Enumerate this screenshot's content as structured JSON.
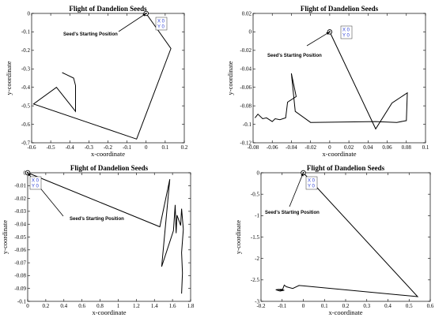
{
  "chart_data": [
    {
      "type": "line",
      "title": "Flight of Dandelion Seeds",
      "xlabel": "x-coordinate",
      "ylabel": "y-coordinate",
      "xlim": [
        -0.6,
        0.2
      ],
      "ylim": [
        -0.7,
        0
      ],
      "xticks": [
        -0.6,
        -0.5,
        -0.4,
        -0.3,
        -0.2,
        -0.1,
        0,
        0.1,
        0.2
      ],
      "xtick_labels": [
        "-0.6",
        "-0.5",
        "-0.4",
        "-0.3",
        "-0.2",
        "-0.1",
        "0",
        "0.1",
        "0.2"
      ],
      "yticks": [
        0,
        -0.1,
        -0.2,
        -0.3,
        -0.4,
        -0.5,
        -0.6,
        -0.7
      ],
      "ytick_labels": [
        "0",
        "-0.1",
        "-0.2",
        "-0.3",
        "-0.4",
        "-0.5",
        "-0.6",
        "-0.7"
      ],
      "annotation": "Seed's Starting Position",
      "datatip": {
        "x_label": "X",
        "x_value": "0",
        "y_label": "Y",
        "y_value": "0"
      },
      "grid": false,
      "series": [
        {
          "x": [
            0,
            0.13,
            -0.05,
            -0.59,
            -0.47,
            -0.37,
            -0.37,
            -0.38,
            -0.42,
            -0.44
          ],
          "y": [
            0,
            -0.19,
            -0.68,
            -0.49,
            -0.4,
            -0.53,
            -0.39,
            -0.35,
            -0.33,
            -0.32
          ]
        }
      ]
    },
    {
      "type": "line",
      "title": "Flight of Dandelion Seeds",
      "xlabel": "x-coordinate",
      "ylabel": "y-coordinate",
      "xlim": [
        -0.08,
        0.1
      ],
      "ylim": [
        -0.12,
        0.02
      ],
      "xticks": [
        -0.08,
        -0.06,
        -0.04,
        -0.02,
        0,
        0.02,
        0.04,
        0.06,
        0.08,
        0.1
      ],
      "xtick_labels": [
        "-0.08",
        "-0.06",
        "-0.04",
        "-0.02",
        "0",
        "0.02",
        "0.04",
        "0.06",
        "0.08",
        "0.1"
      ],
      "yticks": [
        0.02,
        0,
        -0.02,
        -0.04,
        -0.06,
        -0.08,
        -0.1,
        -0.12
      ],
      "ytick_labels": [
        "0.02",
        "0",
        "-0.02",
        "-0.04",
        "-0.06",
        "-0.08",
        "-0.1",
        "-0.12"
      ],
      "annotation": "Seed's Starting Position",
      "datatip": {
        "x_label": "X",
        "x_value": "0",
        "y_label": "Y",
        "y_value": "0"
      },
      "grid": false,
      "series": [
        {
          "x": [
            0,
            0.048,
            0.065,
            0.081,
            0.08,
            0.07,
            0.048,
            -0.02,
            -0.036,
            -0.04,
            -0.035,
            -0.044,
            -0.046,
            -0.052,
            -0.057,
            -0.06,
            -0.066,
            -0.07,
            -0.075,
            -0.078
          ],
          "y": [
            0,
            -0.105,
            -0.077,
            -0.066,
            -0.096,
            -0.098,
            -0.097,
            -0.098,
            -0.086,
            -0.045,
            -0.07,
            -0.076,
            -0.093,
            -0.095,
            -0.094,
            -0.097,
            -0.093,
            -0.094,
            -0.089,
            -0.093
          ]
        }
      ]
    },
    {
      "type": "line",
      "title": "Flight of Dandelion Seeds",
      "xlabel": "x-coordinate",
      "ylabel": "y-coordinate",
      "xlim": [
        0,
        1.8
      ],
      "ylim": [
        -0.1,
        0
      ],
      "xticks": [
        0,
        0.2,
        0.4,
        0.6,
        0.8,
        1,
        1.2,
        1.4,
        1.6,
        1.8
      ],
      "xtick_labels": [
        "0",
        "0.2",
        "0.4",
        "0.6",
        "0.8",
        "1",
        "1.2",
        "1.4",
        "1.6",
        "1.8"
      ],
      "yticks": [
        0,
        -0.01,
        -0.02,
        -0.03,
        -0.04,
        -0.05,
        -0.06,
        -0.07,
        -0.08,
        -0.09,
        -0.1
      ],
      "ytick_labels": [
        "0",
        "-0.01",
        "-0.02",
        "-0.03",
        "-0.04",
        "-0.05",
        "-0.06",
        "-0.07",
        "-0.08",
        "-0.09",
        "-0.1"
      ],
      "annotation": "Seed's Starting Position",
      "datatip": {
        "x_label": "X",
        "x_value": "0",
        "y_label": "Y",
        "y_value": "0"
      },
      "grid": false,
      "series": [
        {
          "x": [
            0,
            1.46,
            1.57,
            1.48,
            1.61,
            1.63,
            1.64,
            1.65,
            1.69,
            1.7,
            1.72,
            1.7,
            1.71,
            1.7
          ],
          "y": [
            0,
            -0.042,
            -0.005,
            -0.073,
            -0.045,
            -0.025,
            -0.047,
            -0.033,
            -0.041,
            -0.028,
            -0.044,
            -0.062,
            -0.078,
            -0.094
          ]
        }
      ]
    },
    {
      "type": "line",
      "title": "Flight of Dandelion Seeds",
      "xlabel": "x-coordinate",
      "ylabel": "y-coordinate",
      "xlim": [
        -0.2,
        0.6
      ],
      "ylim": [
        -3,
        0
      ],
      "xticks": [
        -0.2,
        -0.1,
        0,
        0.1,
        0.2,
        0.3,
        0.4,
        0.5,
        0.6
      ],
      "xtick_labels": [
        "-0.2",
        "-0.1",
        "0",
        "0.1",
        "0.2",
        "0.3",
        "0.4",
        "0.5",
        "0.6"
      ],
      "yticks": [
        0,
        -0.5,
        -1,
        -1.5,
        -2,
        -2.5,
        -3
      ],
      "ytick_labels": [
        "0",
        "-0.5",
        "-1",
        "-1.5",
        "-2",
        "-2.5",
        "-3"
      ],
      "annotation": "Seed's Starting Position",
      "datatip": {
        "x_label": "X",
        "x_value": "0",
        "y_label": "Y",
        "y_value": "0"
      },
      "grid": false,
      "series": [
        {
          "x": [
            0,
            0.54,
            -0.02,
            -0.05,
            -0.08,
            -0.09,
            -0.1,
            -0.12,
            -0.09,
            -0.11,
            -0.13,
            -0.1
          ],
          "y": [
            0,
            -2.89,
            -2.63,
            -2.7,
            -2.66,
            -2.62,
            -2.75,
            -2.72,
            -2.74,
            -2.76,
            -2.73,
            -2.72
          ]
        }
      ]
    }
  ]
}
